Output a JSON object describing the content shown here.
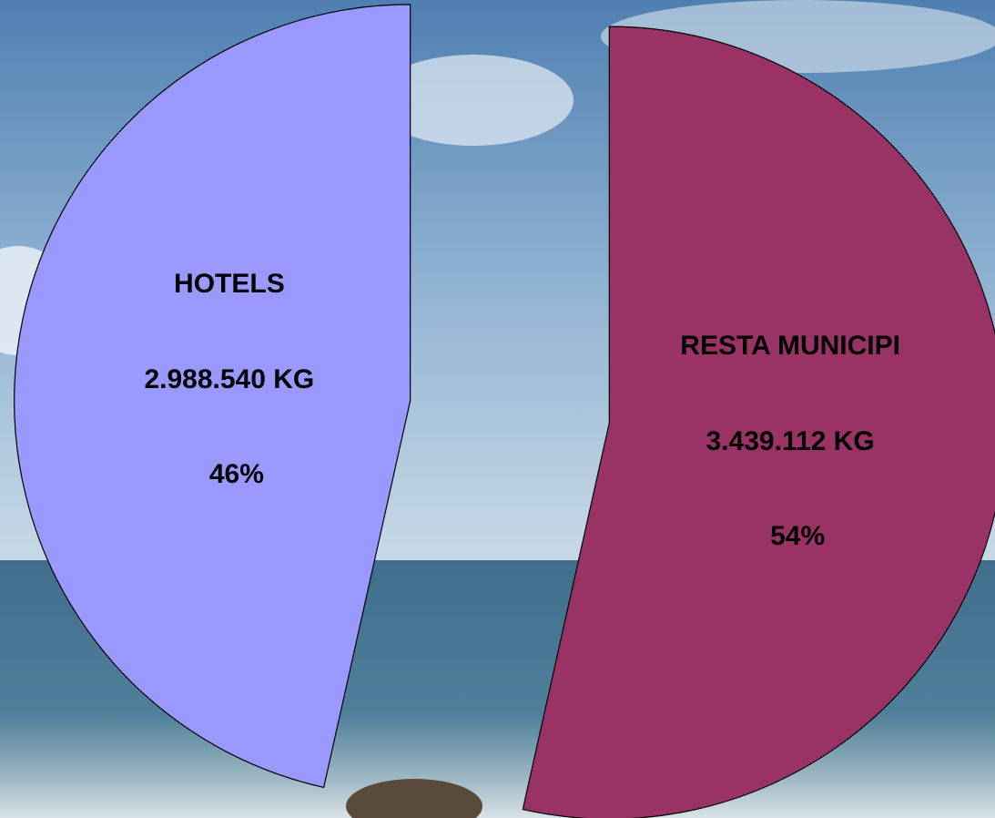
{
  "chart_data": {
    "type": "pie",
    "categories": [
      "HOTELS",
      "RESTA MUNICIPI"
    ],
    "values": [
      2988540,
      3439112
    ],
    "value_labels": [
      "2.988.540 KG",
      "3.439.112 KG"
    ],
    "percent_values": [
      46,
      54
    ],
    "percent_labels": [
      "46%",
      "54%"
    ],
    "colors": [
      "#9999ff",
      "#993366"
    ],
    "exploded": true
  }
}
